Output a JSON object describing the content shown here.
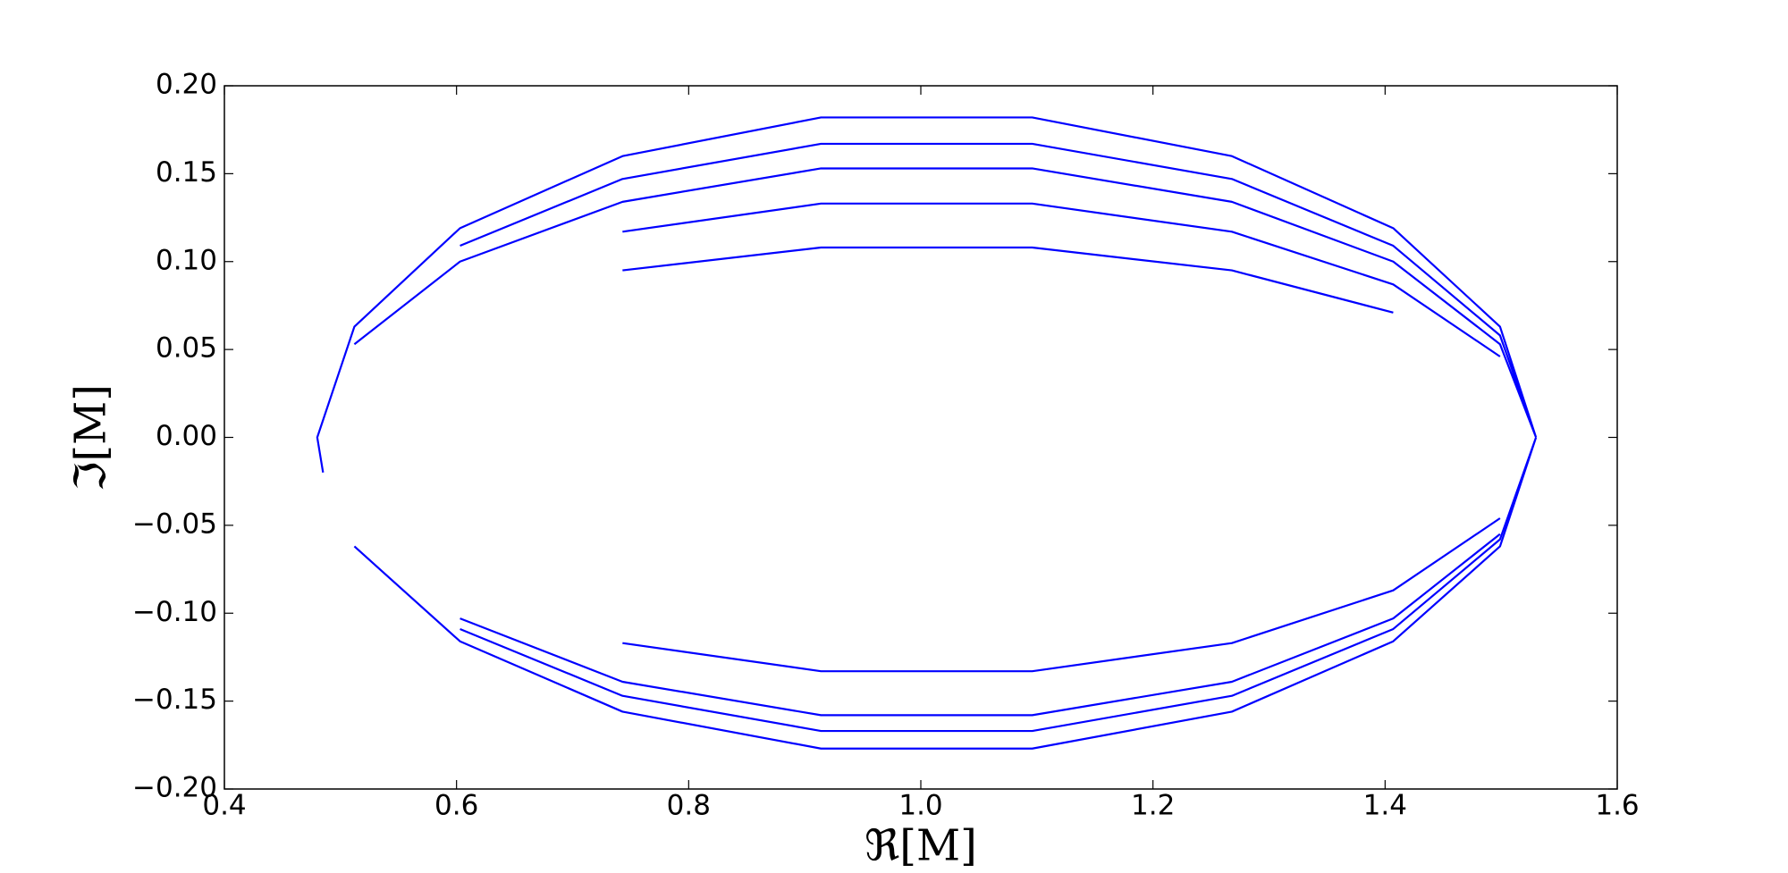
{
  "chart_data": {
    "type": "line",
    "x_label": "ℜ[M]",
    "y_label": "ℑ[M]",
    "x": [
      1.53,
      1.499,
      1.407,
      1.268,
      1.096,
      0.914,
      0.743,
      0.603,
      0.512,
      0.48,
      0.485,
      null,
      0.512,
      0.603,
      0.743,
      0.914,
      1.096,
      1.268,
      1.407,
      1.499,
      1.53,
      null,
      1.53,
      1.499,
      1.407,
      1.268,
      1.096,
      0.914,
      0.743,
      0.603,
      null,
      0.603,
      0.743,
      0.914,
      1.096,
      1.268,
      1.407,
      1.499,
      1.53,
      null,
      1.53,
      1.499,
      1.407,
      1.268,
      1.096,
      0.914,
      0.743,
      0.603,
      0.512,
      null,
      0.603,
      0.743,
      0.914,
      1.096,
      1.268,
      1.407,
      1.499,
      null,
      1.499,
      1.407,
      1.268,
      1.096,
      0.914,
      0.743,
      null,
      0.743,
      0.914,
      1.096,
      1.268,
      1.407,
      1.499,
      null,
      1.407,
      1.268,
      1.096,
      0.914,
      0.743
    ],
    "series": [
      {
        "color": "#0000ff",
        "values": [
          0,
          0.063,
          0.119,
          0.16,
          0.182,
          0.182,
          0.16,
          0.119,
          0.063,
          0,
          -0.02,
          null,
          -0.062,
          -0.116,
          -0.156,
          -0.177,
          -0.177,
          -0.156,
          -0.116,
          -0.062,
          0,
          null,
          0,
          0.058,
          0.109,
          0.147,
          0.167,
          0.167,
          0.147,
          0.109,
          null,
          -0.109,
          -0.147,
          -0.167,
          -0.167,
          -0.147,
          -0.109,
          -0.058,
          0,
          null,
          0,
          0.053,
          0.1,
          0.134,
          0.153,
          0.153,
          0.134,
          0.1,
          0.053,
          null,
          -0.103,
          -0.139,
          -0.158,
          -0.158,
          -0.139,
          -0.103,
          -0.055,
          null,
          0.046,
          0.087,
          0.117,
          0.133,
          0.133,
          0.117,
          null,
          -0.117,
          -0.133,
          -0.133,
          -0.117,
          -0.087,
          -0.046,
          null,
          0.071,
          0.095,
          0.108,
          0.108,
          0.095
        ]
      }
    ],
    "xlim": [
      0.4,
      1.6
    ],
    "xticks": [
      0.4,
      0.6,
      0.8,
      {
        "value": 1,
        "label": "1.0"
      },
      1.2,
      1.4,
      1.6
    ],
    "ylim": [
      -0.2,
      0.2
    ],
    "yticks": [
      {
        "value": -0.2,
        "label": "−0.20"
      },
      {
        "value": -0.15,
        "label": "−0.15"
      },
      {
        "value": -0.1,
        "label": "−0.10"
      },
      {
        "value": -0.05,
        "label": "−0.05"
      },
      {
        "value": 0,
        "label": "0.00"
      },
      {
        "value": 0.05,
        "label": "0.05"
      },
      {
        "value": 0.1,
        "label": "0.10"
      },
      {
        "value": 0.15,
        "label": "0.15"
      },
      {
        "value": 0.2,
        "label": "0.20"
      }
    ]
  }
}
